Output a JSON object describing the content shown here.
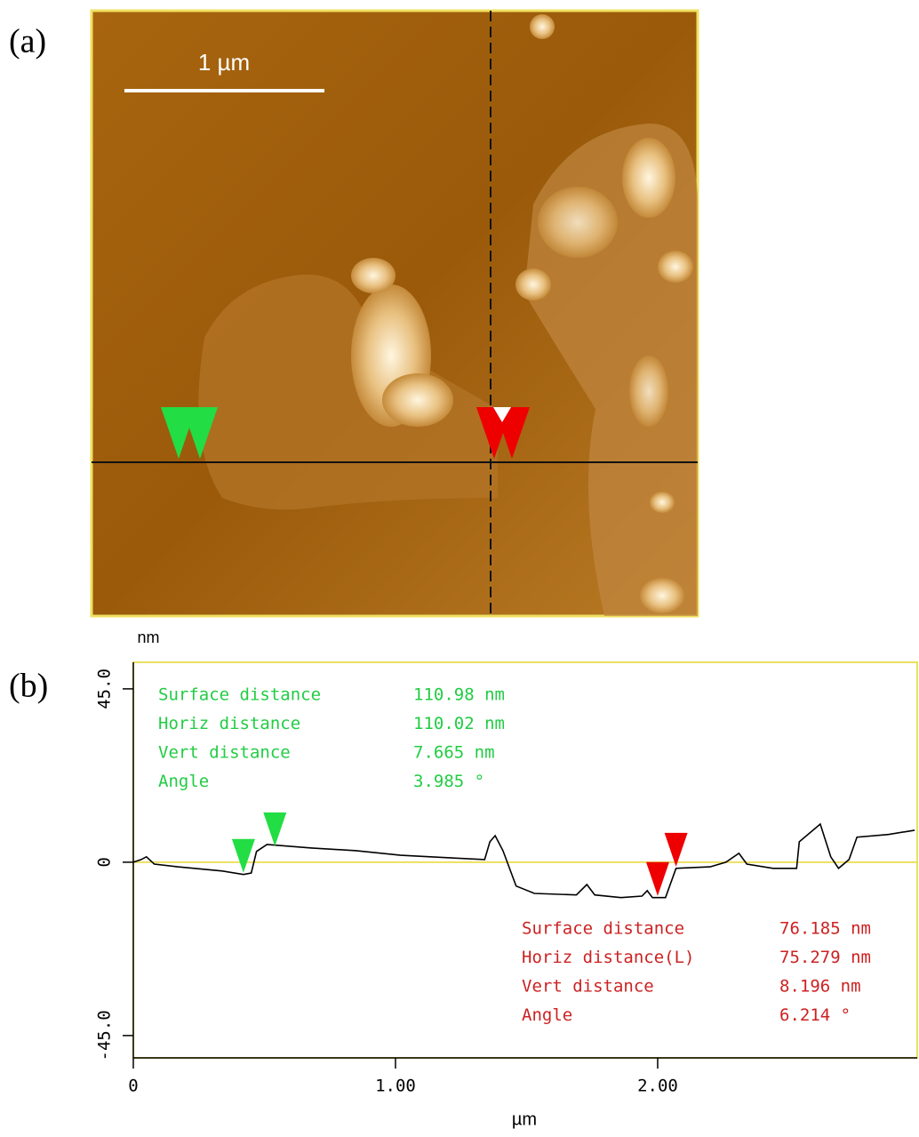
{
  "panel_labels": [
    "(a)",
    "(b)"
  ],
  "image": {
    "scale_bar": "1 µm"
  },
  "chart_data": {
    "type": "line",
    "ylabel": "nm",
    "xlabel": "µm",
    "x": [
      0,
      0.03,
      0.05,
      0.08,
      0.17,
      0.34,
      0.42,
      0.45,
      0.47,
      0.51,
      0.68,
      0.85,
      1.02,
      1.19,
      1.34,
      1.36,
      1.38,
      1.41,
      1.46,
      1.53,
      1.69,
      1.73,
      1.76,
      1.86,
      1.94,
      1.96,
      1.98,
      2.03,
      2.07,
      2.2,
      2.26,
      2.31,
      2.34,
      2.44,
      2.53,
      2.54,
      2.62,
      2.66,
      2.69,
      2.73,
      2.76,
      2.88,
      2.98
    ],
    "values": [
      0,
      0.7,
      1.4,
      -0.5,
      -1.2,
      -2.3,
      -3.2,
      -2.8,
      2.8,
      4.6,
      3.7,
      3.0,
      1.8,
      1.2,
      0.7,
      5.3,
      6.9,
      3.0,
      -6.2,
      -8.1,
      -8.5,
      -5.8,
      -8.5,
      -9.2,
      -8.8,
      -7.4,
      -9.2,
      -9.2,
      -1.6,
      -1.2,
      0,
      2.3,
      -0.5,
      -1.6,
      -1.6,
      5.3,
      9.9,
      1.4,
      -1.6,
      0.7,
      6.5,
      7.2,
      8.3
    ],
    "color": "#000000",
    "xlim": [
      0,
      2.99
    ],
    "ylim": [
      -50.8,
      51.9
    ],
    "xticks": [
      0,
      {
        "value": 1,
        "label": "1.00"
      },
      {
        "value": 2,
        "label": "2.00"
      }
    ],
    "yticks": [
      {
        "value": 45,
        "label": "45.0"
      },
      0,
      {
        "value": -45,
        "label": "-45.0"
      }
    ],
    "cursors": [
      {
        "color": "#22dd44",
        "x": [
          0.42,
          0.54
        ]
      },
      {
        "color": "#ee0000",
        "x": [
          2.0,
          2.07
        ]
      }
    ],
    "measurements": [
      {
        "color": "#22cc44",
        "rows": [
          [
            "Surface distance",
            "110.98 nm"
          ],
          [
            "Horiz distance",
            "110.02 nm"
          ],
          [
            "Vert distance",
            "7.665 nm"
          ],
          [
            "Angle",
            "3.985 °"
          ]
        ]
      },
      {
        "color": "#cc2222",
        "rows": [
          [
            "Surface distance",
            "76.185 nm"
          ],
          [
            "Horiz distance(L)",
            "75.279 nm"
          ],
          [
            "Vert distance",
            "8.196 nm"
          ],
          [
            "Angle",
            "6.214 °"
          ]
        ]
      }
    ]
  }
}
